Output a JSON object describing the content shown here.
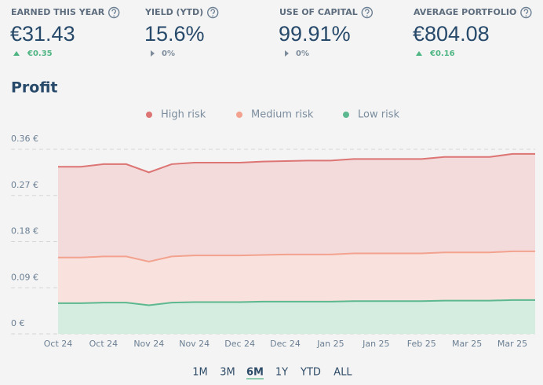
{
  "stats": [
    {
      "label": "EARNED THIS YEAR",
      "value": "€31.43",
      "change": "€0.35",
      "trend": "up"
    },
    {
      "label": "YIELD (YTD)",
      "value": "15.6%",
      "change": "0%",
      "trend": "flat"
    },
    {
      "label": "USE OF CAPITAL",
      "value": "99.91%",
      "change": "0%",
      "trend": "flat"
    },
    {
      "label": "AVERAGE PORTFOLIO",
      "value": "€804.08",
      "change": "€0.16",
      "trend": "up"
    }
  ],
  "ranges": [
    "1M",
    "3M",
    "6M",
    "1Y",
    "YTD",
    "ALL"
  ],
  "active_range": 2,
  "chart_data": {
    "type": "area",
    "stacked": true,
    "title": "Profit",
    "categories": [
      "Oct 24",
      null,
      "Oct 24",
      null,
      "Nov 24",
      null,
      "Nov 24",
      null,
      "Dec 24",
      null,
      "Dec 24",
      null,
      "Jan 25",
      null,
      "Jan 25",
      null,
      "Feb 25",
      null,
      "Mar 25",
      null,
      "Mar 25",
      null
    ],
    "series": [
      {
        "name": "High risk",
        "color": "#dc7574",
        "fill": "#f3dbdb",
        "values": [
          0.177,
          0.177,
          0.18,
          0.18,
          0.174,
          0.18,
          0.181,
          0.181,
          0.181,
          0.182,
          0.182,
          0.183,
          0.183,
          0.184,
          0.184,
          0.184,
          0.184,
          0.186,
          0.186,
          0.186,
          0.19,
          0.19
        ]
      },
      {
        "name": "Medium risk",
        "color": "#f2a28e",
        "fill": "#f9e2dd",
        "values": [
          0.089,
          0.089,
          0.09,
          0.09,
          0.085,
          0.09,
          0.091,
          0.091,
          0.091,
          0.091,
          0.092,
          0.092,
          0.092,
          0.093,
          0.093,
          0.093,
          0.093,
          0.094,
          0.094,
          0.094,
          0.095,
          0.095
        ]
      },
      {
        "name": "Low risk",
        "color": "#5cb88f",
        "fill": "#d5ece1",
        "values": [
          0.06,
          0.06,
          0.061,
          0.061,
          0.056,
          0.061,
          0.062,
          0.062,
          0.062,
          0.063,
          0.063,
          0.063,
          0.063,
          0.064,
          0.064,
          0.064,
          0.064,
          0.065,
          0.065,
          0.065,
          0.066,
          0.066
        ]
      }
    ],
    "ylim": [
      0,
      0.36
    ],
    "yticks": [
      {
        "value": 0,
        "label": "0 €"
      },
      {
        "value": 0.09,
        "label": "0.09 €"
      },
      {
        "value": 0.18,
        "label": "0.18 €"
      },
      {
        "value": 0.27,
        "label": "0.27 €"
      },
      {
        "value": 0.36,
        "label": "0.36 €"
      }
    ],
    "grid": true,
    "legend": "top"
  }
}
